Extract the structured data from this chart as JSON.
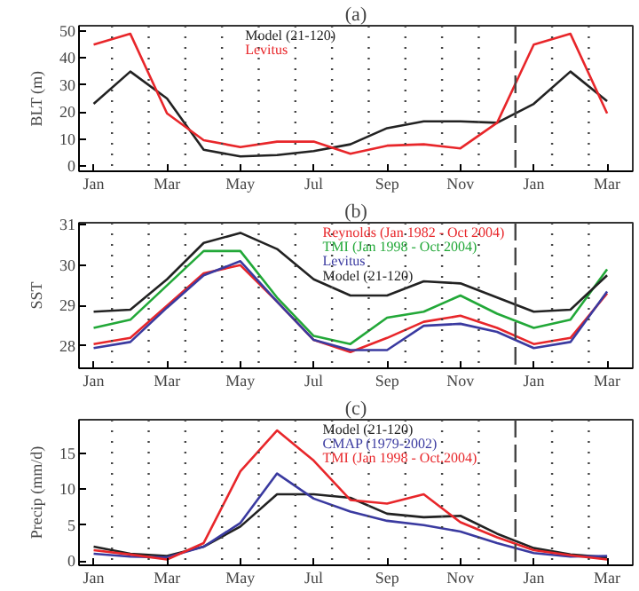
{
  "chart_data": [
    {
      "type": "line",
      "title": "(a)",
      "ylabel": "BLT (m)",
      "categories": [
        "Jan",
        null,
        "Mar",
        null,
        "May",
        null,
        "Jul",
        null,
        "Sep",
        null,
        "Nov",
        null,
        "Jan",
        null,
        "Mar"
      ],
      "ylim": [
        -2,
        52
      ],
      "yticks": [
        0,
        10,
        20,
        30,
        40,
        50
      ],
      "grid": "x",
      "series": [
        {
          "name": "Model (21-120)",
          "color": "#222222",
          "values": [
            23,
            35,
            25,
            6,
            3.5,
            4,
            5.5,
            8,
            14,
            16.5,
            16.5,
            16,
            23,
            35,
            24
          ]
        },
        {
          "name": "Levitus",
          "color": "#e8262a",
          "values": [
            45,
            49,
            19.5,
            9.5,
            7,
            9,
            9,
            4.5,
            7.5,
            8,
            6.5,
            16,
            45,
            49,
            19.5
          ]
        }
      ],
      "legend": "top"
    },
    {
      "type": "line",
      "title": "(b)",
      "ylabel": "SST",
      "categories": [
        "Jan",
        null,
        "Mar",
        null,
        "May",
        null,
        "Jul",
        null,
        "Sep",
        null,
        "Nov",
        null,
        "Jan",
        null,
        "Mar"
      ],
      "ylim": [
        27.45,
        31.05
      ],
      "yticks": [
        28,
        29,
        30,
        31
      ],
      "grid": "x",
      "series": [
        {
          "name": "Reynolds (Jan 1982 - Oct 2004)",
          "color": "#e8262a",
          "values": [
            28.05,
            28.2,
            29.0,
            29.8,
            30.0,
            29.1,
            28.15,
            27.85,
            28.2,
            28.6,
            28.75,
            28.45,
            28.05,
            28.2,
            29.3
          ]
        },
        {
          "name": "TMI (Jan 1998 - Oct 2004)",
          "color": "#22a838",
          "values": [
            28.45,
            28.65,
            29.5,
            30.35,
            30.35,
            29.2,
            28.25,
            28.05,
            28.7,
            28.85,
            29.25,
            28.8,
            28.45,
            28.65,
            29.9
          ]
        },
        {
          "name": "Levitus",
          "color": "#3a3aa0",
          "values": [
            27.95,
            28.1,
            28.95,
            29.75,
            30.1,
            29.1,
            28.15,
            27.9,
            27.9,
            28.5,
            28.55,
            28.35,
            27.95,
            28.1,
            29.35
          ]
        },
        {
          "name": "Model (21-120)",
          "color": "#222222",
          "values": [
            28.85,
            28.9,
            29.65,
            30.55,
            30.8,
            30.4,
            29.65,
            29.25,
            29.25,
            29.6,
            29.55,
            29.2,
            28.85,
            28.9,
            29.75
          ]
        }
      ],
      "legend": "top right"
    },
    {
      "type": "line",
      "title": "(c)",
      "ylabel": "Precip (mm/d)",
      "categories": [
        "Jan",
        null,
        "Mar",
        null,
        "May",
        null,
        "Jul",
        null,
        "Sep",
        null,
        "Nov",
        null,
        "Jan",
        null,
        "Mar"
      ],
      "ylim": [
        -0.6,
        19.7
      ],
      "yticks": [
        0,
        5,
        10,
        15
      ],
      "grid": "x",
      "series": [
        {
          "name": "Model (21-120)",
          "color": "#222222",
          "values": [
            2,
            1.0,
            0.7,
            2,
            4.8,
            9.3,
            9.3,
            8.8,
            6.6,
            6.1,
            6.3,
            3.8,
            1.8,
            0.9,
            0.5
          ]
        },
        {
          "name": "CMAP (1979-2002)",
          "color": "#3a3aa0",
          "values": [
            1.0,
            0.6,
            0.5,
            2,
            5.3,
            12.2,
            8.7,
            6.9,
            5.6,
            5.0,
            4.1,
            2.5,
            1.1,
            0.6,
            0.7
          ]
        },
        {
          "name": "TMI (Jan 1998 - Oct.2004)",
          "color": "#e8262a",
          "values": [
            1.5,
            0.9,
            0.2,
            2.5,
            12.5,
            18.2,
            14,
            8.5,
            8.0,
            9.3,
            5.4,
            3.3,
            1.5,
            0.8,
            0.2
          ]
        }
      ],
      "legend": "top right"
    }
  ]
}
